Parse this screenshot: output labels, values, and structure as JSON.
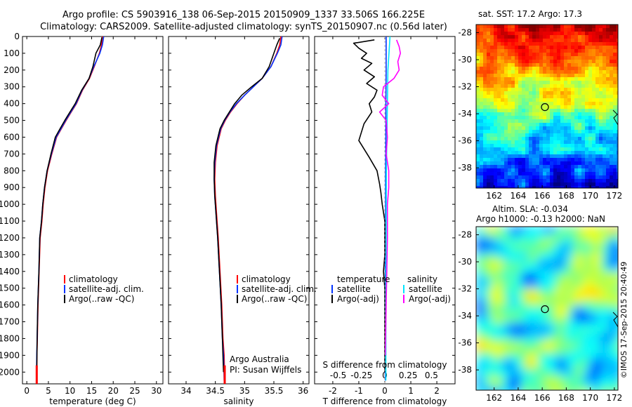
{
  "header": {
    "line1": "Argo profile: CS 5903916_138 06-Sep-2015 20150909_1337 33.506S 166.225E",
    "line2": "Climatology: CARS2009. Satellite-adjusted climatology: synTS_20150907.nc (0.56d later)"
  },
  "colors": {
    "climatology": "#ff0000",
    "satellite": "#0033ff",
    "argo": "#000000",
    "satellite_s": "#00e5ff",
    "argo_s": "#ff00ff"
  },
  "depth_ticks": [
    0,
    100,
    200,
    300,
    400,
    500,
    600,
    700,
    800,
    900,
    1000,
    1100,
    1200,
    1300,
    1400,
    1500,
    1600,
    1700,
    1800,
    1900,
    2000
  ],
  "legend": {
    "items": [
      "climatology",
      "satellite-adj. clim.",
      "Argo(..raw -QC)"
    ]
  },
  "chart_data": [
    {
      "type": "line",
      "id": "temperature",
      "xlabel": "temperature (deg C)",
      "xlim": [
        -1,
        31.5
      ],
      "xticks": [
        0,
        5,
        10,
        15,
        20,
        25,
        30
      ],
      "ylim": [
        2070,
        0
      ],
      "series": [
        {
          "name": "climatology",
          "color": "#ff0000",
          "x": [
            17.5,
            17.3,
            16.8,
            15.6,
            14.5,
            12.9,
            11.5,
            10.3,
            9.1,
            8.0,
            6.9,
            5.8,
            4.8,
            4.2,
            3.8,
            3.5,
            3.1,
            2.85,
            2.6,
            2.45,
            2.35,
            2.3
          ],
          "y": [
            0,
            50,
            100,
            180,
            250,
            320,
            400,
            450,
            500,
            550,
            600,
            700,
            800,
            900,
            1000,
            1100,
            1200,
            1400,
            1600,
            1800,
            1900,
            2050
          ]
        },
        {
          "name": "satellite-adj. clim.",
          "color": "#0033ff",
          "x": [
            17.8,
            17.5,
            16.9,
            15.5,
            14.4,
            12.8,
            11.4,
            10.2,
            9.0,
            7.9,
            6.8,
            5.7,
            4.7,
            4.1,
            3.7,
            3.4,
            3.0,
            2.8,
            2.55,
            2.4,
            2.3,
            2.25
          ],
          "y": [
            0,
            50,
            100,
            180,
            250,
            320,
            400,
            450,
            500,
            550,
            600,
            700,
            800,
            900,
            1000,
            1100,
            1200,
            1400,
            1600,
            1800,
            1900,
            2050
          ]
        },
        {
          "name": "Argo(..raw -QC)",
          "color": "#000000",
          "x": [
            17.4,
            17.0,
            16.0,
            15.3,
            14.4,
            12.7,
            11.2,
            10.0,
            8.8,
            7.7,
            6.6,
            5.6,
            4.7,
            4.1,
            3.7,
            3.4,
            3.0,
            2.8,
            2.55,
            2.4,
            2.3
          ],
          "y": [
            5,
            50,
            100,
            180,
            250,
            320,
            400,
            450,
            500,
            550,
            600,
            700,
            800,
            900,
            1000,
            1100,
            1200,
            1400,
            1600,
            1800,
            2000
          ]
        }
      ]
    },
    {
      "type": "line",
      "id": "salinity",
      "xlabel": "salinity",
      "xlim": [
        33.7,
        36.1
      ],
      "xticks": [
        34,
        34.5,
        35,
        35.5,
        36
      ],
      "ylim": [
        2070,
        0
      ],
      "annotation": [
        "Argo Australia",
        "PI: Susan Wijffels"
      ],
      "series": [
        {
          "name": "climatology",
          "color": "#ff0000",
          "x": [
            35.62,
            35.6,
            35.55,
            35.45,
            35.3,
            35.15,
            35.0,
            34.87,
            34.76,
            34.67,
            34.6,
            34.53,
            34.5,
            34.49,
            34.5,
            34.52,
            34.55,
            34.58,
            34.61,
            34.63,
            34.65,
            34.66
          ],
          "y": [
            0,
            50,
            100,
            180,
            250,
            300,
            350,
            400,
            450,
            500,
            550,
            650,
            750,
            850,
            950,
            1050,
            1200,
            1400,
            1600,
            1800,
            1900,
            2050
          ]
        },
        {
          "name": "satellite-adj. clim.",
          "color": "#0033ff",
          "x": [
            35.64,
            35.62,
            35.56,
            35.45,
            35.3,
            35.15,
            35.0,
            34.86,
            34.75,
            34.66,
            34.59,
            34.52,
            34.49,
            34.48,
            34.49,
            34.51,
            34.54,
            34.57,
            34.6,
            34.62,
            34.64,
            34.65
          ],
          "y": [
            0,
            50,
            100,
            180,
            250,
            300,
            350,
            400,
            450,
            500,
            550,
            650,
            750,
            850,
            950,
            1050,
            1200,
            1400,
            1600,
            1800,
            1900,
            2050
          ]
        },
        {
          "name": "Argo(..raw -QC)",
          "color": "#000000",
          "x": [
            35.6,
            35.55,
            35.5,
            35.42,
            35.3,
            35.12,
            34.95,
            34.83,
            34.74,
            34.65,
            34.58,
            34.51,
            34.48,
            34.48,
            34.49,
            34.51,
            34.54,
            34.57,
            34.6,
            34.62,
            34.64
          ],
          "y": [
            10,
            50,
            100,
            180,
            250,
            300,
            350,
            400,
            450,
            500,
            550,
            650,
            750,
            850,
            950,
            1050,
            1200,
            1400,
            1600,
            1800,
            2000
          ]
        }
      ]
    },
    {
      "type": "line",
      "id": "differences",
      "xlim": [
        -2.7,
        2.7
      ],
      "xticks": [
        -2,
        -1,
        0,
        1,
        2
      ],
      "top_xticks": [
        "-0.5",
        "-0.25",
        "0",
        "0.25",
        "0.5"
      ],
      "top_xlabel": "S difference from climatology",
      "xlabel": "T difference from climatology",
      "ylim": [
        2070,
        0
      ],
      "legend_temperature": {
        "title": "temperature",
        "items": [
          "satellite",
          "Argo(-adj)"
        ]
      },
      "legend_salinity": {
        "title": "salinity",
        "items": [
          "satellite",
          "Argo(-adj)"
        ]
      },
      "series": [
        {
          "name": "temperature satellite",
          "color": "#0033ff",
          "x": [
            0.05,
            0.05,
            0.04,
            0.04,
            0.03,
            0.03,
            0.02,
            0.02,
            0.02
          ],
          "y": [
            0,
            200,
            400,
            600,
            800,
            1000,
            1400,
            1800,
            2050
          ]
        },
        {
          "name": "temperature Argo(-adj)",
          "color": "#000000",
          "x": [
            -0.4,
            -1.2,
            -1.0,
            -0.7,
            -0.9,
            -0.5,
            -0.8,
            -0.4,
            -0.7,
            -0.3,
            -0.4,
            -0.6,
            -0.5,
            -0.8,
            -1.0,
            -0.6,
            -0.3,
            -0.2,
            -0.15,
            -0.1,
            0.0,
            0.0,
            -0.05,
            0.0,
            0.0,
            0.0,
            0.0
          ],
          "y": [
            20,
            40,
            70,
            100,
            130,
            160,
            200,
            240,
            280,
            320,
            360,
            400,
            450,
            520,
            620,
            720,
            800,
            880,
            930,
            1000,
            1100,
            1300,
            1400,
            1500,
            1700,
            1900,
            2000
          ]
        },
        {
          "name": "salinity satellite",
          "color": "#00e5ff",
          "x": [
            0.2,
            0.16,
            0.12,
            0.1,
            0.08,
            0.06,
            0.05,
            0.04,
            0.04
          ],
          "y": [
            0,
            100,
            200,
            400,
            600,
            800,
            1200,
            1600,
            2050
          ]
        },
        {
          "name": "salinity Argo(-adj)",
          "color": "#ff00ff",
          "x": [
            0.45,
            0.55,
            0.6,
            0.5,
            0.55,
            0.35,
            -0.05,
            -0.1,
            0.15,
            -0.2,
            0.05,
            0.1,
            0.05,
            0.15,
            0.15,
            0.1,
            0.1,
            0.05,
            0.02
          ],
          "y": [
            20,
            60,
            100,
            150,
            200,
            250,
            300,
            350,
            400,
            450,
            500,
            600,
            700,
            800,
            900,
            1000,
            1200,
            1600,
            1900
          ]
        }
      ]
    },
    {
      "type": "heatmap",
      "id": "sst-map",
      "title": "sat. SST: 17.2 Argo: 17.3",
      "xticks": [
        162,
        164,
        166,
        168,
        170,
        172
      ],
      "yticks": [
        -28,
        -30,
        -32,
        -34,
        -36,
        -38
      ],
      "xlim": [
        160.5,
        172.3
      ],
      "ylim": [
        -39.5,
        -27.4
      ],
      "argo_position": [
        166.225,
        -33.506
      ]
    },
    {
      "type": "heatmap",
      "id": "sla-map",
      "title": "Altim. SLA: -0.034",
      "subtitle": "Argo h1000: -0.13 h2000: NaN",
      "xticks": [
        162,
        164,
        166,
        168,
        170,
        172
      ],
      "yticks": [
        -28,
        -30,
        -32,
        -34,
        -36,
        -38
      ],
      "xlim": [
        160.5,
        172.3
      ],
      "ylim": [
        -39.5,
        -27.4
      ],
      "argo_position": [
        166.225,
        -33.506
      ]
    }
  ],
  "credit": "©IMOS 17-Sep-2015 20:40:49"
}
